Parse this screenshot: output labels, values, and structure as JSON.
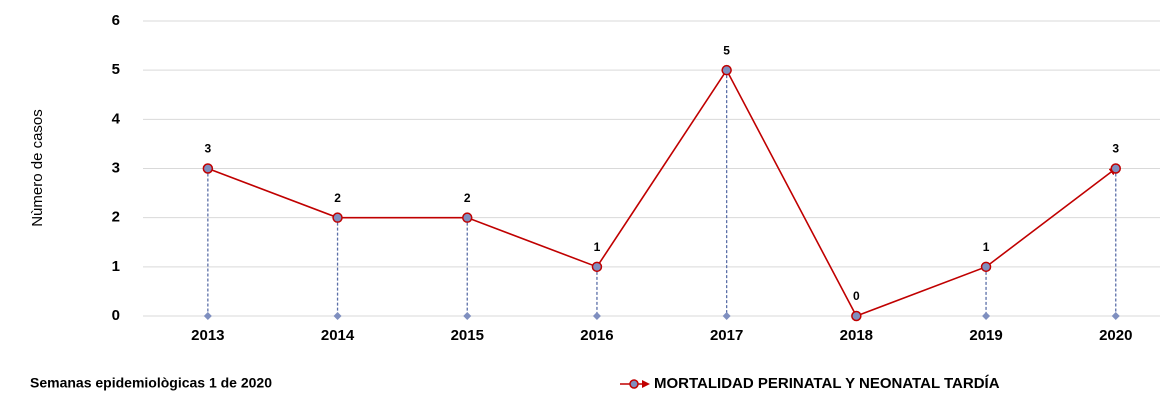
{
  "chart_data": {
    "type": "line",
    "y_label": "Nùmero de casos",
    "note": "Semanas epidemiològicas 1 de 2020",
    "categories": [
      "2013",
      "2014",
      "2015",
      "2016",
      "2017",
      "2018",
      "2019",
      "2020"
    ],
    "series": [
      {
        "name": "MORTALIDAD PERINATAL Y NEONATAL TARDÍA",
        "color": "#c00000",
        "marker_color": "#7f8fbf",
        "values": [
          3,
          2,
          2,
          1,
          5,
          0,
          1,
          3
        ]
      }
    ],
    "ylim": [
      0,
      6
    ],
    "yticks": [
      0,
      1,
      2,
      3,
      4,
      5,
      6
    ],
    "grid": true,
    "drop_lines": true,
    "data_labels": true,
    "legend": "bottom-right"
  }
}
